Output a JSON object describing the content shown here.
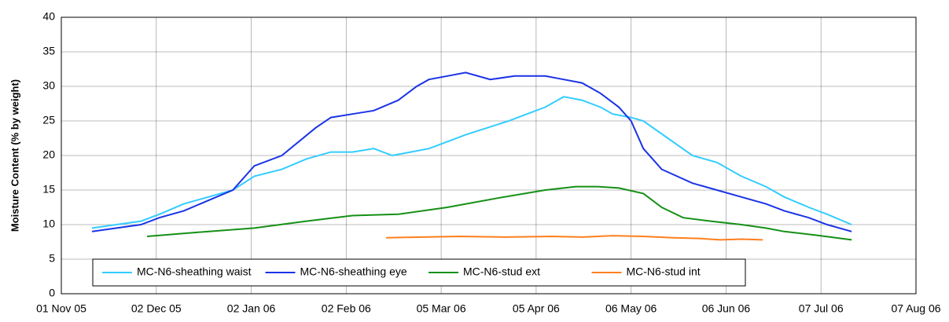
{
  "chart_data": {
    "type": "line",
    "y_label": "Moisture Content (% by weight)",
    "xlim": [
      0,
      279
    ],
    "xticks": [
      {
        "value": 0,
        "label": "01 Nov 05"
      },
      {
        "value": 31,
        "label": "02 Dec 05"
      },
      {
        "value": 62,
        "label": "02 Jan 06"
      },
      {
        "value": 93,
        "label": "02 Feb 06"
      },
      {
        "value": 124,
        "label": "05 Mar 06"
      },
      {
        "value": 155,
        "label": "05 Apr 06"
      },
      {
        "value": 186,
        "label": "06 May 06"
      },
      {
        "value": 217,
        "label": "06 Jun 06"
      },
      {
        "value": 248,
        "label": "07 Jul 06"
      },
      {
        "value": 279,
        "label": "07 Aug 06"
      }
    ],
    "ylim": [
      0,
      40
    ],
    "yticks": [
      0,
      5,
      10,
      15,
      20,
      25,
      30,
      35,
      40
    ],
    "grid": true,
    "legend": "bottom",
    "series": [
      {
        "name": "MC-N6-sheathing waist",
        "color": "#33ccff",
        "x": [
          10,
          18,
          26,
          32,
          40,
          48,
          56,
          63,
          72,
          80,
          88,
          95,
          102,
          108,
          114,
          120,
          126,
          132,
          139,
          146,
          152,
          158,
          164,
          170,
          176,
          180,
          186,
          190,
          198,
          206,
          214,
          222,
          230,
          236,
          244,
          250,
          258
        ],
        "values": [
          9.5,
          10,
          10.5,
          11.5,
          13,
          14,
          15,
          17,
          18,
          19.5,
          20.5,
          20.5,
          21,
          20,
          20.5,
          21,
          22,
          23,
          24,
          25,
          26,
          27,
          28.5,
          28,
          27,
          26,
          25.5,
          25,
          22.5,
          20,
          19,
          17,
          15.5,
          14,
          12.5,
          11.5,
          10
        ]
      },
      {
        "name": "MC-N6-sheathing eye",
        "color": "#1a33e6",
        "x": [
          10,
          18,
          26,
          32,
          40,
          48,
          56,
          63,
          72,
          83,
          88,
          95,
          102,
          110,
          116,
          120,
          126,
          132,
          140,
          148,
          158,
          164,
          170,
          176,
          182,
          186,
          190,
          196,
          206,
          214,
          222,
          230,
          236,
          244,
          250,
          258
        ],
        "values": [
          9,
          9.5,
          10,
          11,
          12,
          13.5,
          15,
          18.5,
          20,
          24,
          25.5,
          26,
          26.5,
          28,
          30,
          31,
          31.5,
          32,
          31,
          31.5,
          31.5,
          31,
          30.5,
          29,
          27,
          25,
          21,
          18,
          16,
          15,
          14,
          13,
          12,
          11,
          10,
          9
        ]
      },
      {
        "name": "MC-N6-stud ext",
        "color": "#159015",
        "x": [
          28,
          45,
          63,
          80,
          95,
          110,
          126,
          142,
          158,
          168,
          175,
          182,
          190,
          196,
          203,
          212,
          222,
          230,
          236,
          246,
          258
        ],
        "values": [
          8.3,
          8.9,
          9.5,
          10.5,
          11.3,
          11.5,
          12.5,
          13.8,
          15,
          15.5,
          15.5,
          15.3,
          14.5,
          12.5,
          11,
          10.5,
          10,
          9.5,
          9,
          8.5,
          7.8
        ]
      },
      {
        "name": "MC-N6-stud int",
        "color": "#ff7f1f",
        "x": [
          106,
          118,
          130,
          145,
          160,
          170,
          180,
          190,
          200,
          208,
          215,
          222,
          229
        ],
        "values": [
          8.1,
          8.2,
          8.3,
          8.2,
          8.3,
          8.2,
          8.4,
          8.3,
          8.1,
          8,
          7.8,
          7.9,
          7.8
        ]
      }
    ]
  }
}
